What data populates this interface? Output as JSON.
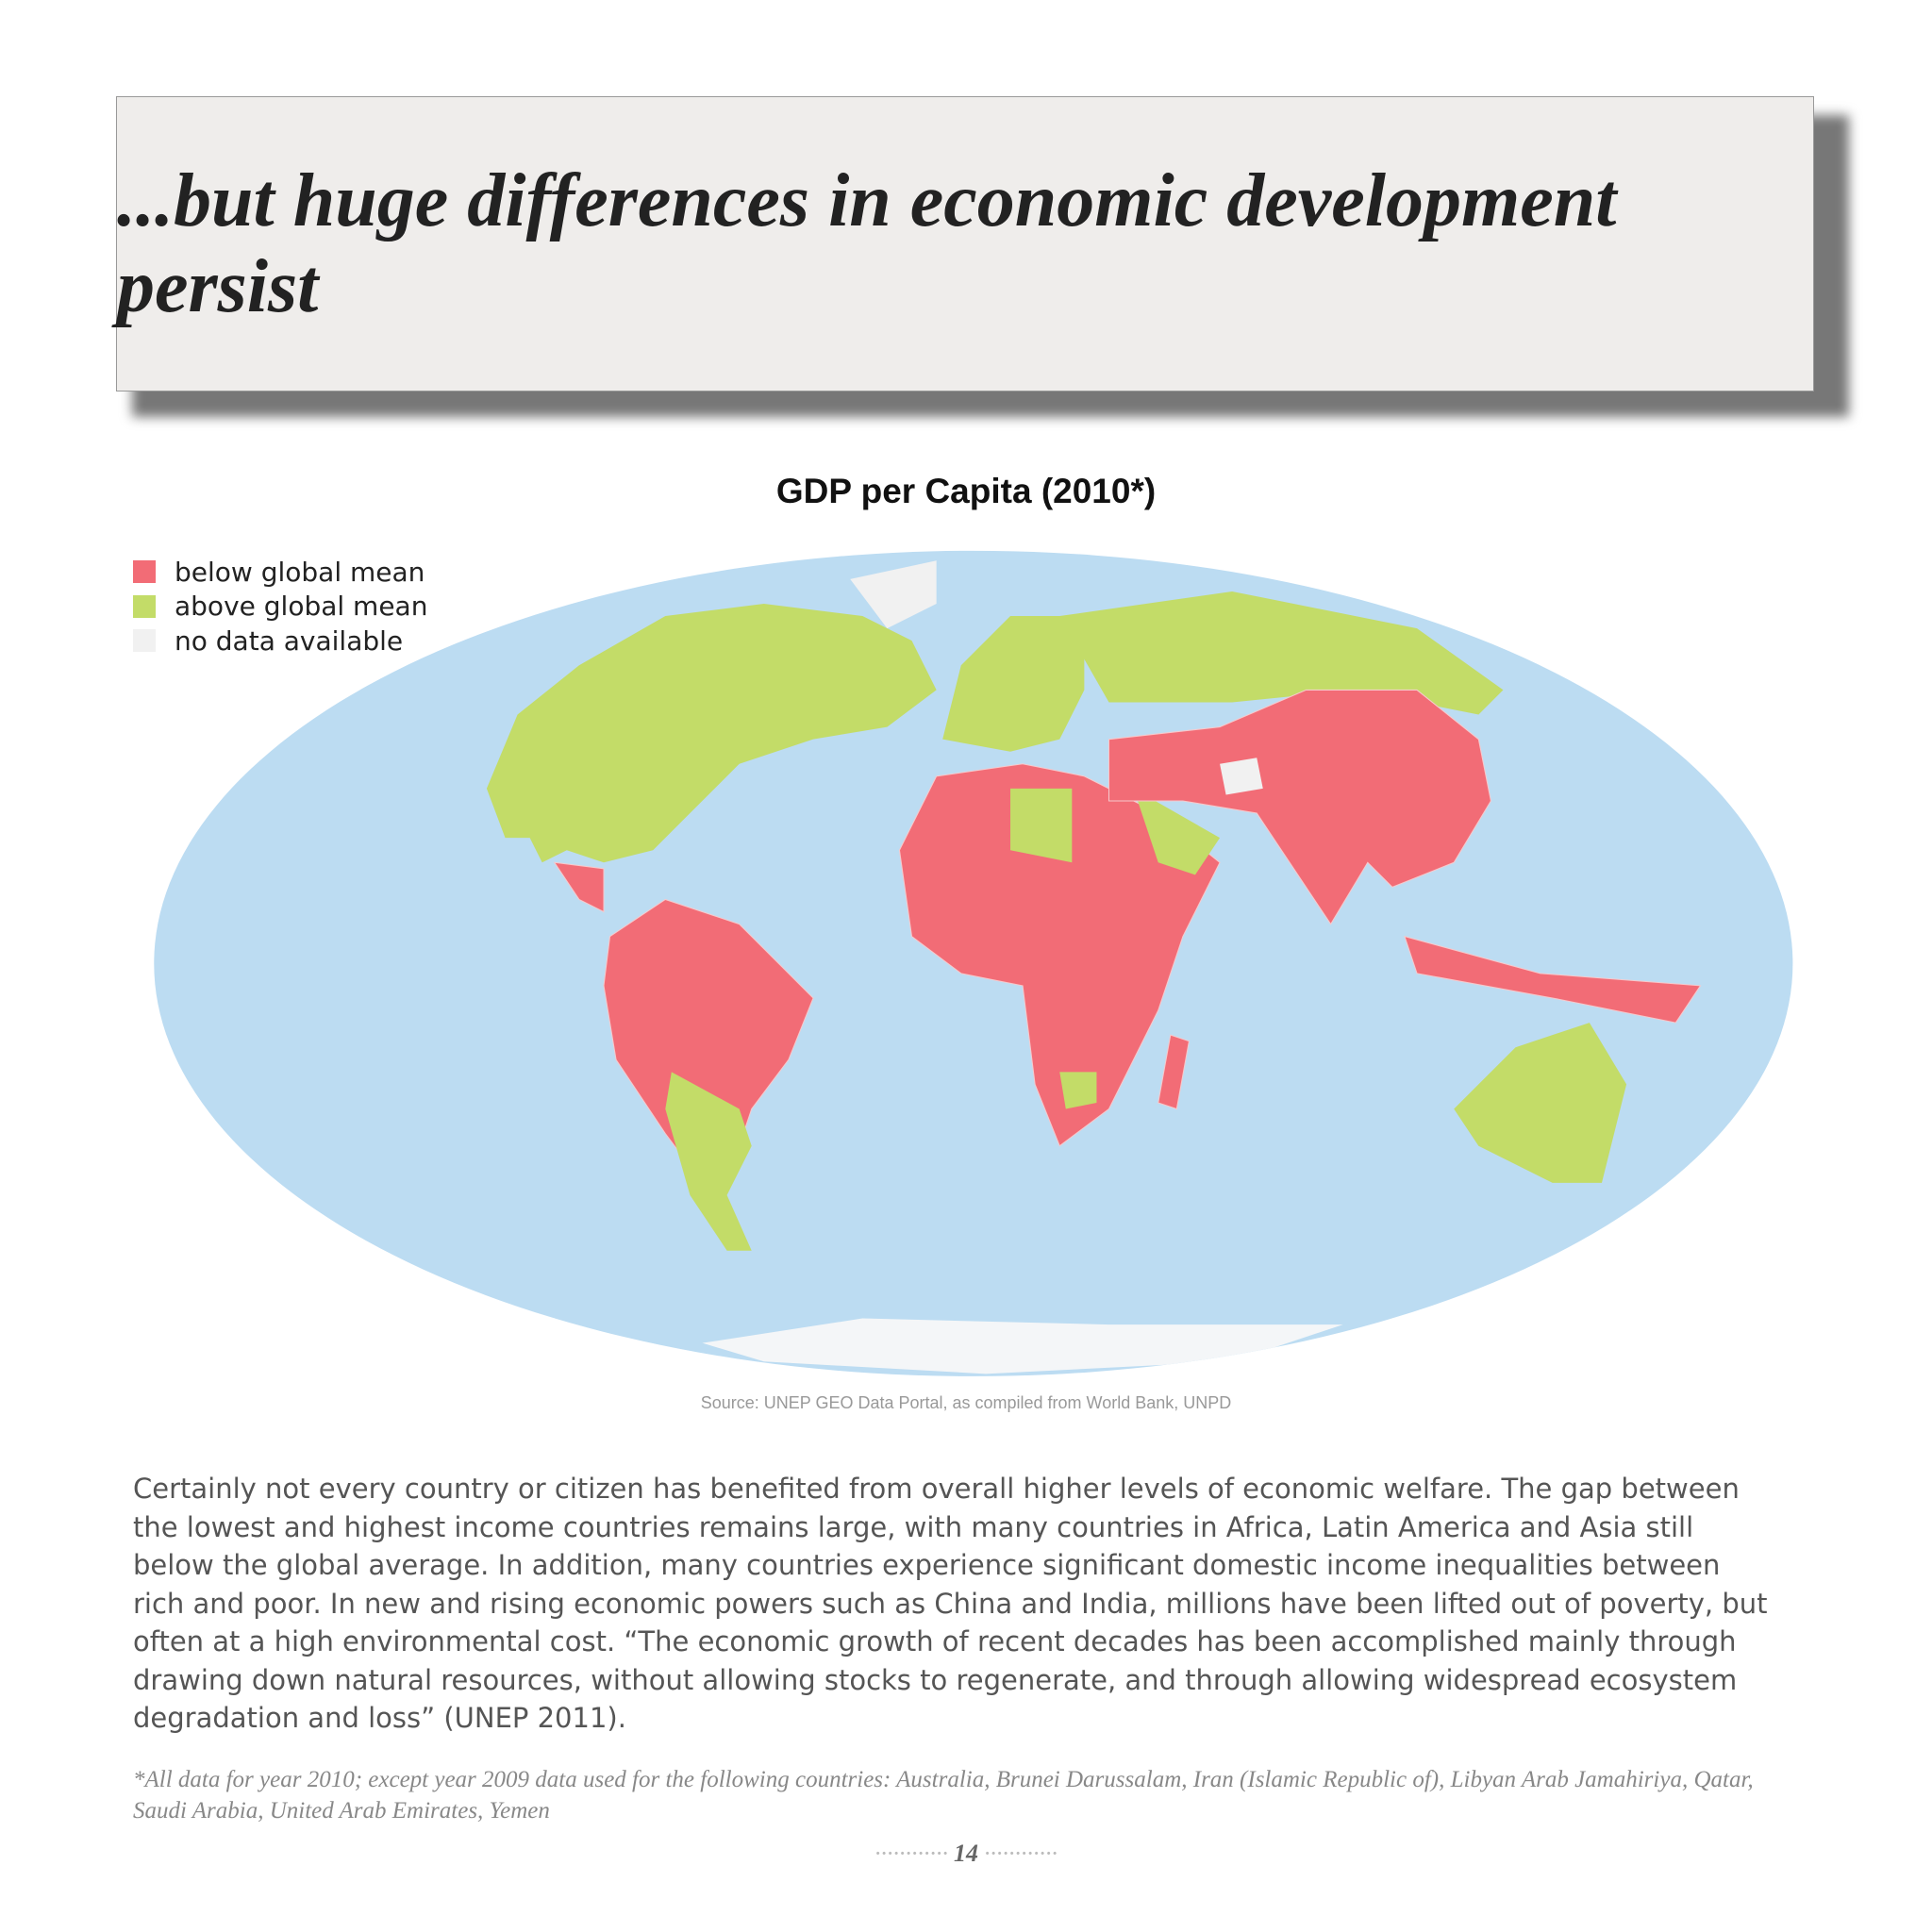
{
  "header": {
    "title": "...but huge differences in economic development persist"
  },
  "map": {
    "title": "GDP per Capita (2010*)",
    "legend": [
      {
        "label": "below global mean",
        "color": "#f26c76"
      },
      {
        "label": "above global mean",
        "color": "#c3dc68"
      },
      {
        "label": "no data available",
        "color": "#f1f1f1"
      }
    ],
    "source": "Source: UNEP GEO Data Portal, as compiled from World Bank, UNPD"
  },
  "body": {
    "paragraph": "Certainly not every country or citizen has benefited from overall higher levels of economic welfare. The gap between the lowest and highest income countries remains large, with many countries in Africa, Latin America and Asia still below the global average. In addition, many countries experience significant domestic income inequalities between rich and poor. In new and rising economic powers such as China and India, millions have been lifted out of poverty, but often at a high environmental cost. “The economic growth of recent decades has been accomplished mainly through drawing down natural resources, without allowing stocks to regenerate, and through allowing widespread ecosystem degradation and loss” (UNEP 2011)."
  },
  "footnote": "*All data for year 2010; except year 2009 data used for the following countries: Australia, Brunei Darussalam, Iran (Islamic Republic of), Libyan Arab Jamahiriya, Qatar, Saudi Arabia, United Arab Emirates, Yemen",
  "page_number": "14"
}
